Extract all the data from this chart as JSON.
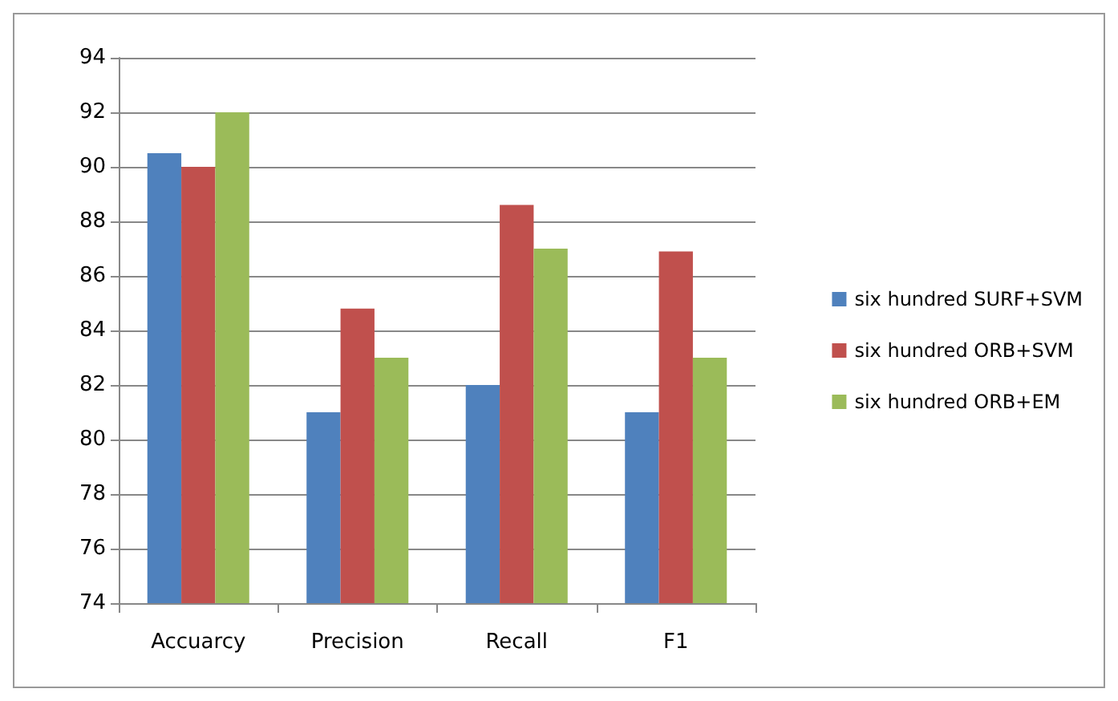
{
  "chart_data": {
    "type": "bar",
    "categories": [
      "Accuarcy",
      "Precision",
      "Recall",
      "F1"
    ],
    "series": [
      {
        "name": "six hundred SURF+SVM",
        "color": "#4f81bd",
        "values": [
          90.5,
          81.0,
          82.0,
          81.0
        ]
      },
      {
        "name": "six hundred ORB+SVM",
        "color": "#c0504d",
        "values": [
          90.0,
          84.8,
          88.6,
          86.9
        ]
      },
      {
        "name": "six hundred ORB+EM",
        "color": "#9bbb59",
        "values": [
          92.0,
          83.0,
          87.0,
          83.0
        ]
      }
    ],
    "ylim": [
      74,
      94
    ],
    "yticks": [
      74,
      76,
      78,
      80,
      82,
      84,
      86,
      88,
      90,
      92,
      94
    ],
    "grid": "y",
    "legend": "right"
  }
}
